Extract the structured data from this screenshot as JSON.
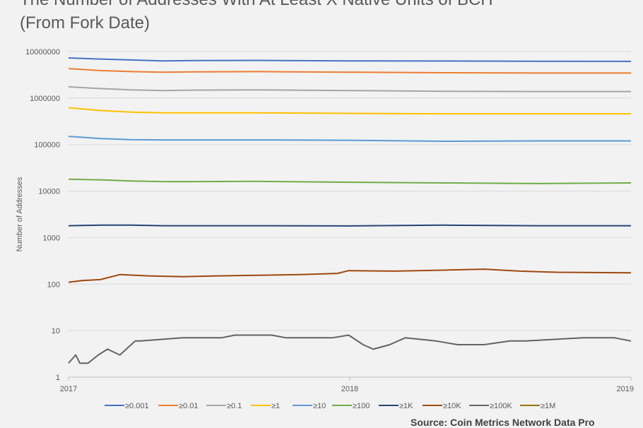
{
  "page": {
    "title_line_1": "The Number of Addresses With At Least X Native Units of BCH",
    "title_line_2": "(From Fork Date)",
    "source": "Source: Coin Metrics Network Data Pro"
  },
  "chart_data": {
    "type": "line",
    "title": "The Number of Addresses With At Least X Native Units of BCH (From Fork Date)",
    "xlabel": "",
    "ylabel": "Number of Addresses",
    "y_scale": "log",
    "ylim": [
      1,
      10000000
    ],
    "y_ticks": [
      "10000000",
      "1000000",
      "100000",
      "10000",
      "1000",
      "100",
      "10",
      "1"
    ],
    "x_ticks": [
      "2017",
      "2018",
      "2019"
    ],
    "xlim": [
      "2017-08-01",
      "2019-01-31"
    ],
    "grid": true,
    "legend_position": "bottom",
    "series": [
      {
        "name": "≥0.001",
        "color": "#4472c4",
        "x": [
          "2017-08-01",
          "2017-09-01",
          "2017-10-01",
          "2017-11-01",
          "2017-12-01",
          "2018-02-01",
          "2018-05-01",
          "2018-08-01",
          "2018-11-01",
          "2019-01-31"
        ],
        "y": [
          7300000,
          6900000,
          6600000,
          6300000,
          6400000,
          6450000,
          6300000,
          6250000,
          6200000,
          6150000
        ]
      },
      {
        "name": "≥0.01",
        "color": "#ed7d31",
        "x": [
          "2017-08-01",
          "2017-09-01",
          "2017-10-01",
          "2017-11-01",
          "2017-12-01",
          "2018-02-01",
          "2018-05-01",
          "2018-08-01",
          "2018-11-01",
          "2019-01-31"
        ],
        "y": [
          4300000,
          3900000,
          3700000,
          3600000,
          3650000,
          3700000,
          3600000,
          3500000,
          3450000,
          3450000
        ]
      },
      {
        "name": "≥0.1",
        "color": "#a5a5a5",
        "x": [
          "2017-08-01",
          "2017-09-01",
          "2017-10-01",
          "2017-11-01",
          "2017-12-01",
          "2018-02-01",
          "2018-05-01",
          "2018-08-01",
          "2018-11-01",
          "2019-01-31"
        ],
        "y": [
          1750000,
          1600000,
          1500000,
          1450000,
          1480000,
          1500000,
          1450000,
          1400000,
          1380000,
          1380000
        ]
      },
      {
        "name": "≥1",
        "color": "#ffc000",
        "x": [
          "2017-08-01",
          "2017-09-01",
          "2017-10-01",
          "2017-11-01",
          "2017-12-01",
          "2018-02-01",
          "2018-05-01",
          "2018-08-01",
          "2018-11-01",
          "2019-01-31"
        ],
        "y": [
          620000,
          540000,
          500000,
          480000,
          480000,
          480000,
          470000,
          460000,
          460000,
          460000
        ]
      },
      {
        "name": "≥10",
        "color": "#5b9bd5",
        "x": [
          "2017-08-01",
          "2017-09-01",
          "2017-10-01",
          "2017-11-01",
          "2017-12-01",
          "2018-02-01",
          "2018-05-01",
          "2018-08-01",
          "2018-11-01",
          "2019-01-31"
        ],
        "y": [
          150000,
          135000,
          128000,
          126000,
          126000,
          126000,
          124000,
          118000,
          120000,
          120000
        ]
      },
      {
        "name": "≥100",
        "color": "#70ad47",
        "x": [
          "2017-08-01",
          "2017-09-01",
          "2017-10-01",
          "2017-11-01",
          "2017-12-01",
          "2018-02-01",
          "2018-05-01",
          "2018-08-01",
          "2018-11-01",
          "2019-01-31"
        ],
        "y": [
          18000,
          17500,
          16500,
          16000,
          16000,
          16200,
          15500,
          15000,
          14500,
          15000
        ]
      },
      {
        "name": "≥1K",
        "color": "#264478",
        "x": [
          "2017-08-01",
          "2017-09-01",
          "2017-10-01",
          "2017-11-01",
          "2017-12-01",
          "2018-02-01",
          "2018-05-01",
          "2018-08-01",
          "2018-11-01",
          "2019-01-31"
        ],
        "y": [
          1800,
          1850,
          1850,
          1800,
          1800,
          1800,
          1780,
          1850,
          1800,
          1800
        ]
      },
      {
        "name": "≥10K",
        "color": "#9e480e",
        "x": [
          "2017-08-01",
          "2017-08-15",
          "2017-09-01",
          "2017-09-20",
          "2017-10-20",
          "2017-11-20",
          "2017-12-20",
          "2018-02-01",
          "2018-03-15",
          "2018-04-20",
          "2018-05-01",
          "2018-06-15",
          "2018-08-01",
          "2018-09-10",
          "2018-10-15",
          "2018-11-20",
          "2019-01-31"
        ],
        "y": [
          110,
          120,
          125,
          160,
          150,
          145,
          150,
          155,
          160,
          170,
          195,
          190,
          200,
          210,
          190,
          180,
          175
        ]
      },
      {
        "name": "≥100K",
        "color": "#636363",
        "x": [
          "2017-08-01",
          "2017-08-08",
          "2017-08-12",
          "2017-08-20",
          "2017-08-30",
          "2017-09-08",
          "2017-09-20",
          "2017-10-05",
          "2017-10-10",
          "2017-11-20",
          "2017-12-28",
          "2018-01-10",
          "2018-02-15",
          "2018-03-01",
          "2018-04-15",
          "2018-05-01",
          "2018-05-15",
          "2018-05-25",
          "2018-06-10",
          "2018-06-25",
          "2018-07-25",
          "2018-08-15",
          "2018-09-10",
          "2018-10-05",
          "2018-10-20",
          "2018-12-15",
          "2019-01-15",
          "2019-01-31"
        ],
        "y": [
          2,
          3,
          2,
          2,
          3,
          4,
          3,
          6,
          6,
          7,
          7,
          8,
          8,
          7,
          7,
          8,
          5,
          4,
          5,
          7,
          6,
          5,
          5,
          6,
          6,
          7,
          7,
          6
        ]
      },
      {
        "name": "≥1M",
        "color": "#997300",
        "x": [],
        "y": []
      }
    ]
  }
}
